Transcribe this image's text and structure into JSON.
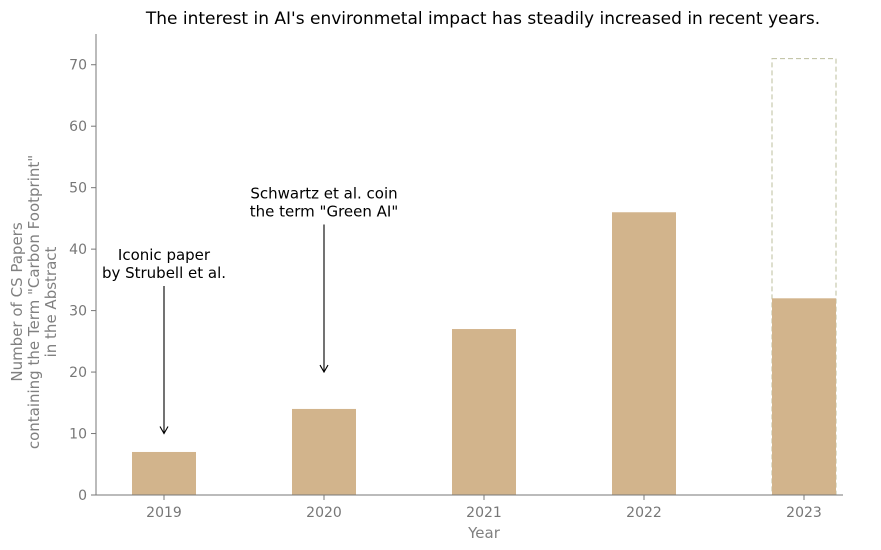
{
  "chart_data": {
    "type": "bar",
    "title": "The interest in AI's environmetal impact has steadily increased in recent years.",
    "xlabel": "Year",
    "ylabel_lines": [
      "Number of CS Papers",
      "containing the Term \"Carbon Footprint\"",
      "in the Abstract"
    ],
    "categories": [
      "2019",
      "2020",
      "2021",
      "2022",
      "2023"
    ],
    "values": [
      7,
      14,
      27,
      46,
      32
    ],
    "projected": {
      "category": "2023",
      "value": 71
    },
    "ylim": [
      0,
      75
    ],
    "yticks": [
      0,
      10,
      20,
      30,
      40,
      50,
      60,
      70
    ],
    "grid": false,
    "annotations": [
      {
        "lines": [
          "Iconic paper",
          "by Strubell et al."
        ],
        "category": "2019",
        "arrow_from": 34,
        "arrow_to": 10
      },
      {
        "lines": [
          "Schwartz et al. coin",
          "the term \"Green AI\""
        ],
        "category": "2020",
        "arrow_from": 44,
        "arrow_to": 20
      }
    ],
    "colors": {
      "bar": "#D2B48C",
      "projected_outline": "#BDBF9E",
      "axis": "#777777",
      "text": "#000000"
    }
  }
}
